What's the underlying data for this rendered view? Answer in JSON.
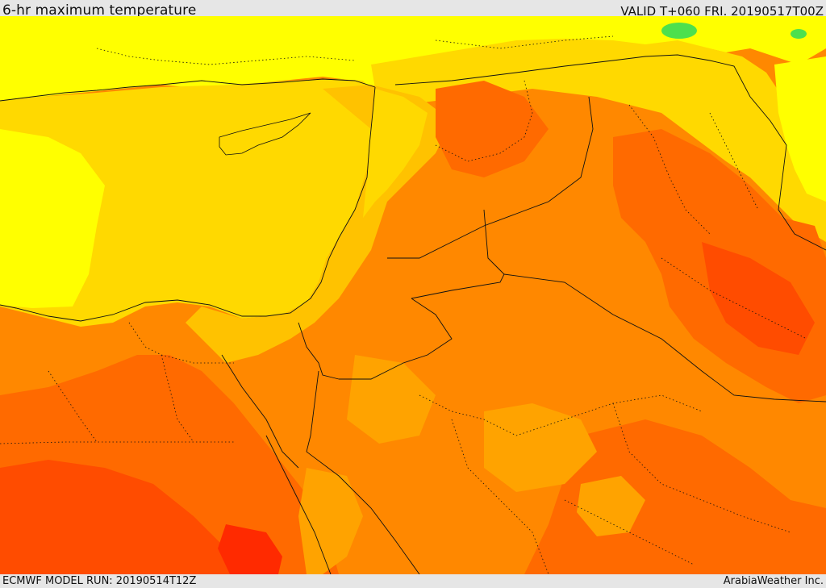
{
  "header": {
    "product_title": "6-hr maximum temperature",
    "valid_time": "VALID T+060 FRI. 20190517T00Z"
  },
  "footer": {
    "model_run": "ECMWF MODEL RUN: 20190514T12Z",
    "credit": "ArabiaWeather Inc."
  },
  "map": {
    "field": "6-hr maximum temperature",
    "colors": {
      "sea_yellow": "#ffd900",
      "bright_yellow": "#ffff00",
      "yellow_orange": "#ffc200",
      "light_orange": "#ffa300",
      "orange": "#ff8800",
      "dark_orange": "#ff6a00",
      "red_orange": "#ff4c00",
      "red": "#ff2a00",
      "green": "#4de04d",
      "boundary_line": "#111111"
    }
  }
}
